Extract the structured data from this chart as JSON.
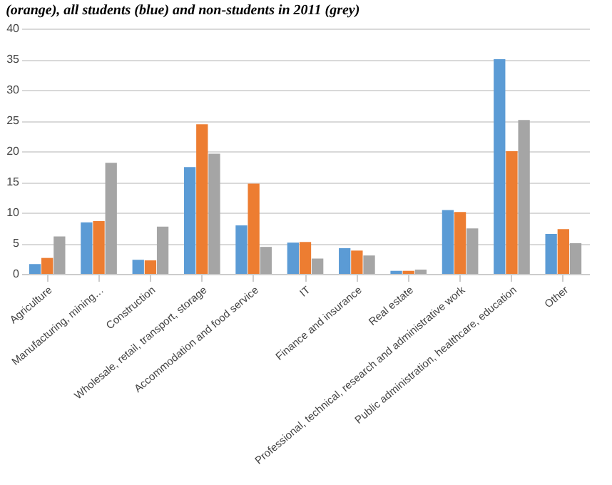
{
  "chart_data": {
    "type": "bar",
    "title": "(orange), all students (blue) and non-students in 2011 (grey)",
    "categories": [
      "Agriculture",
      "Manufacturing, mining…",
      "Construction",
      "Wholesale, retail, transport, storage",
      "Accommodation and food service",
      "IT",
      "Finance and insurance",
      "Real estate",
      "Professional, technical, research and administrative work",
      "Public administration, healthcare, education",
      "Other"
    ],
    "series": [
      {
        "color": "#5b9bd5",
        "values": [
          1.6,
          8.4,
          2.3,
          17.4,
          7.9,
          5.1,
          4.2,
          0.5,
          10.4,
          35.0,
          6.5
        ]
      },
      {
        "color": "#ed7d31",
        "values": [
          2.6,
          8.6,
          2.2,
          24.4,
          14.7,
          5.2,
          3.8,
          0.5,
          10.1,
          20.0,
          7.3
        ]
      },
      {
        "color": "#a5a5a5",
        "values": [
          6.1,
          18.1,
          7.7,
          19.6,
          4.4,
          2.5,
          3.0,
          0.7,
          7.4,
          25.1,
          5.0
        ]
      }
    ],
    "ylim": [
      0,
      40
    ],
    "yticks": [
      0,
      5,
      10,
      15,
      20,
      25,
      30,
      35,
      40
    ],
    "grid": "y"
  }
}
